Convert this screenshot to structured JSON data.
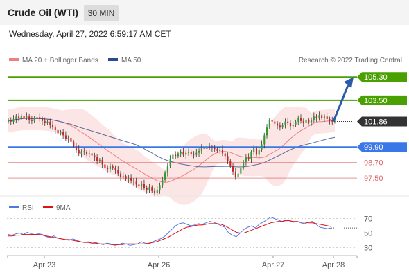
{
  "header": {
    "instrument": "Crude Oil (WTI)",
    "timeframe": "30 MIN",
    "timestamp": "Wednesday, April 27, 2022 6:59:17 AM CET"
  },
  "colors": {
    "bullish_candle": "#2e9a2e",
    "bearish_candle": "#cc2222",
    "ma20": "#f08080",
    "bollinger_fill": "#fbdcdc",
    "ma50": "#2a4a8f",
    "resistance": "#4aa000",
    "pivot": "#3b78e7",
    "support": "#e06666",
    "current_label": "#333333",
    "forecast_arrow": "#2a5aa8",
    "rsi": "#5577dd",
    "rsi_ma": "#dd1111"
  },
  "chart_data": [
    {
      "type": "candlestick",
      "title": "",
      "legend_position": "top-left",
      "legend": [
        {
          "name": "MA 20 + Bollinger Bands",
          "color": "#f08080"
        },
        {
          "name": "MA 50",
          "color": "#2a4a8f"
        }
      ],
      "copyright": "Research © 2022 Trading Central",
      "x_tick_labels": [
        "Apr 23",
        "Apr 26",
        "Apr 27",
        "Apr 28"
      ],
      "y_range": [
        95.9,
        105.9
      ],
      "current_price": {
        "value": 101.86,
        "label": "101.86"
      },
      "levels": [
        {
          "value": 105.3,
          "label": "105.30",
          "kind": "resistance"
        },
        {
          "value": 103.5,
          "label": "103.50",
          "kind": "resistance"
        },
        {
          "value": 99.9,
          "label": "99.90",
          "kind": "pivot"
        },
        {
          "value": 98.7,
          "label": "98.70",
          "kind": "support"
        },
        {
          "value": 97.5,
          "label": "97.50",
          "kind": "support"
        }
      ],
      "forecast_arrow": {
        "from": 101.86,
        "to": 105.3
      },
      "close_prices": [
        101.95,
        101.85,
        102.05,
        102.25,
        102.1,
        102.3,
        102.15,
        102.25,
        102.0,
        101.9,
        102.15,
        102.2,
        102.05,
        101.9,
        101.75,
        101.85,
        101.6,
        101.4,
        101.2,
        100.95,
        101.05,
        100.8,
        100.55,
        100.6,
        100.3,
        99.95,
        99.7,
        99.4,
        99.55,
        99.5,
        99.35,
        99.4,
        99.25,
        99.1,
        98.8,
        98.9,
        98.55,
        98.3,
        98.2,
        98.4,
        98.25,
        98.1,
        97.85,
        97.6,
        97.65,
        97.4,
        97.5,
        97.3,
        97.25,
        97.0,
        96.85,
        97.05,
        96.75,
        96.6,
        96.8,
        96.5,
        96.35,
        96.6,
        96.95,
        97.35,
        97.9,
        98.45,
        98.95,
        99.3,
        99.2,
        99.4,
        99.5,
        99.3,
        99.45,
        99.5,
        99.35,
        99.3,
        99.45,
        99.6,
        99.85,
        99.75,
        99.9,
        99.85,
        99.8,
        99.75,
        99.6,
        99.7,
        99.4,
        99.2,
        98.8,
        98.4,
        98.0,
        97.55,
        97.85,
        98.3,
        98.75,
        99.1,
        99.0,
        99.5,
        99.8,
        99.3,
        99.7,
        100.1,
        100.8,
        101.4,
        102.0,
        101.85,
        101.7,
        101.55,
        101.4,
        101.6,
        101.85,
        101.75,
        101.5,
        101.6,
        101.85,
        102.1,
        101.9,
        101.75,
        102.0,
        101.8,
        101.95,
        102.25,
        102.15,
        102.35,
        102.1,
        102.25,
        102.05,
        101.95,
        101.85,
        101.9
      ]
    },
    {
      "type": "line",
      "title": "",
      "legend": [
        {
          "name": "RSI",
          "color": "#5577dd"
        },
        {
          "name": "9MA",
          "color": "#dd1111"
        }
      ],
      "y_ticks": [
        30,
        50,
        70
      ],
      "y_range": [
        20,
        80
      ],
      "grid": "dotted",
      "series": [
        {
          "name": "RSI",
          "values": [
            48,
            47,
            49,
            50,
            48,
            51,
            49,
            48,
            49,
            48,
            45,
            44,
            46,
            43,
            42,
            41,
            40,
            42,
            40,
            38,
            37,
            38,
            36,
            37,
            35,
            34,
            36,
            35,
            33,
            34,
            36,
            35,
            33,
            34,
            35,
            38,
            36,
            35,
            38,
            40,
            42,
            45,
            50,
            55,
            60,
            63,
            64,
            62,
            60,
            61,
            63,
            62,
            64,
            66,
            65,
            63,
            60,
            58,
            50,
            47,
            45,
            50,
            55,
            58,
            60,
            57,
            62,
            65,
            68,
            72,
            70,
            68,
            66,
            68,
            67,
            65,
            66,
            64,
            63,
            65,
            66,
            62,
            58,
            57,
            56,
            57
          ]
        },
        {
          "name": "9MA",
          "values": [
            46,
            46,
            47,
            47,
            48,
            48,
            48,
            48,
            48,
            47,
            46,
            45,
            44,
            43,
            42,
            41,
            41,
            40,
            39,
            38,
            37,
            37,
            36,
            36,
            35,
            35,
            35,
            34,
            34,
            34,
            34,
            35,
            35,
            35,
            35,
            35,
            35,
            36,
            37,
            38,
            40,
            42,
            44,
            47,
            50,
            53,
            56,
            58,
            59,
            60,
            61,
            61,
            62,
            63,
            63,
            63,
            62,
            60,
            57,
            54,
            51,
            50,
            50,
            52,
            54,
            56,
            58,
            60,
            62,
            64,
            65,
            66,
            66,
            67,
            67,
            66,
            66,
            65,
            65,
            64,
            64,
            63,
            62,
            61,
            60,
            59
          ]
        }
      ]
    }
  ]
}
